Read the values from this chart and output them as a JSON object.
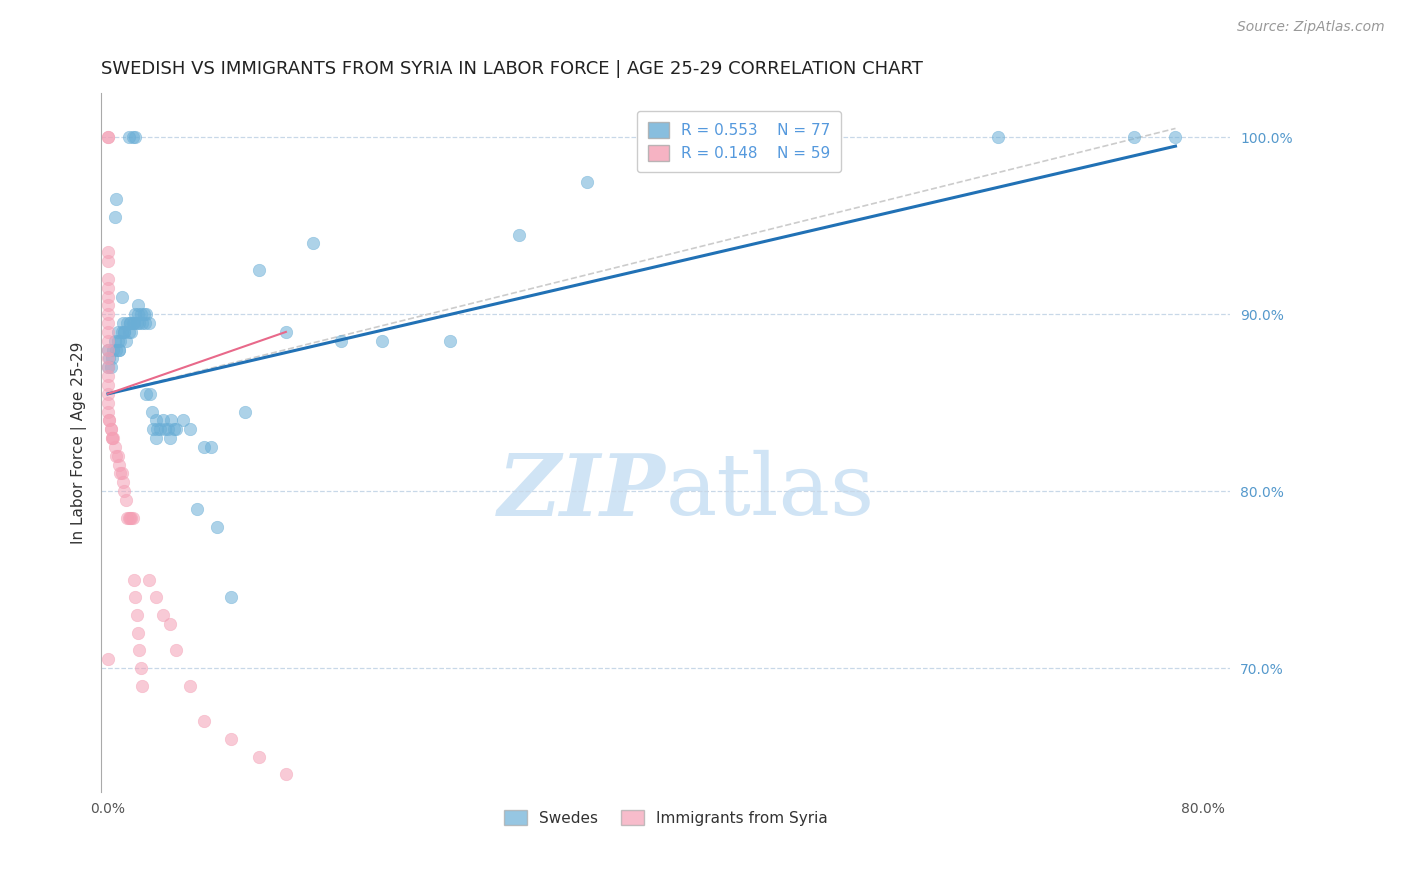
{
  "title": "SWEDISH VS IMMIGRANTS FROM SYRIA IN LABOR FORCE | AGE 25-29 CORRELATION CHART",
  "source_text": "Source: ZipAtlas.com",
  "ylabel": "In Labor Force | Age 25-29",
  "ytick_labels": [
    "100.0%",
    "90.0%",
    "80.0%",
    "70.0%"
  ],
  "ytick_values": [
    1.0,
    0.9,
    0.8,
    0.7
  ],
  "xlim": [
    -0.005,
    0.82
  ],
  "ylim": [
    0.63,
    1.025
  ],
  "blue_color": "#6aaed6",
  "pink_color": "#f4a0b5",
  "blue_line_color": "#2171b5",
  "pink_line_color": "#e8698a",
  "diagonal_line_color": "#cccccc",
  "grid_color": "#c8d8e8",
  "background_color": "#ffffff",
  "watermark_color": "#d0e4f5",
  "legend_r_blue": "R = 0.553",
  "legend_n_blue": "N = 77",
  "legend_r_pink": "R = 0.148",
  "legend_n_pink": "N = 59",
  "swedes_label": "Swedes",
  "syria_label": "Immigrants from Syria",
  "blue_scatter_x": [
    0.0,
    0.0,
    0.001,
    0.002,
    0.003,
    0.004,
    0.005,
    0.006,
    0.007,
    0.008,
    0.009,
    0.01,
    0.011,
    0.012,
    0.013,
    0.014,
    0.015,
    0.016,
    0.017,
    0.018,
    0.019,
    0.02,
    0.021,
    0.022,
    0.023,
    0.024,
    0.025,
    0.026,
    0.027,
    0.028,
    0.03,
    0.031,
    0.032,
    0.033,
    0.035,
    0.036,
    0.038,
    0.04,
    0.042,
    0.044,
    0.046,
    0.048,
    0.05,
    0.055,
    0.06,
    0.065,
    0.07,
    0.075,
    0.08,
    0.09,
    0.1,
    0.11,
    0.13,
    0.15,
    0.17,
    0.2,
    0.25,
    0.3,
    0.35,
    0.5,
    0.65,
    0.75,
    0.78,
    0.005,
    0.006,
    0.015,
    0.018,
    0.02,
    0.007,
    0.008,
    0.01,
    0.012,
    0.016,
    0.022,
    0.028,
    0.035,
    0.045
  ],
  "blue_scatter_y": [
    0.87,
    0.88,
    0.875,
    0.87,
    0.875,
    0.88,
    0.885,
    0.88,
    0.885,
    0.88,
    0.885,
    0.89,
    0.895,
    0.89,
    0.885,
    0.895,
    0.89,
    0.895,
    0.89,
    0.895,
    0.895,
    0.9,
    0.895,
    0.9,
    0.895,
    0.9,
    0.895,
    0.9,
    0.895,
    0.9,
    0.895,
    0.855,
    0.845,
    0.835,
    0.84,
    0.835,
    0.835,
    0.84,
    0.835,
    0.835,
    0.84,
    0.835,
    0.835,
    0.84,
    0.835,
    0.79,
    0.825,
    0.825,
    0.78,
    0.74,
    0.845,
    0.925,
    0.89,
    0.94,
    0.885,
    0.885,
    0.885,
    0.945,
    0.975,
    1.0,
    1.0,
    1.0,
    1.0,
    0.955,
    0.965,
    1.0,
    1.0,
    1.0,
    0.89,
    0.88,
    0.91,
    0.89,
    0.895,
    0.905,
    0.855,
    0.83,
    0.83
  ],
  "pink_scatter_x": [
    0.0,
    0.0,
    0.0,
    0.0,
    0.0,
    0.0,
    0.0,
    0.0,
    0.0,
    0.0,
    0.0,
    0.0,
    0.0,
    0.0,
    0.0,
    0.0,
    0.0,
    0.0,
    0.0,
    0.0,
    0.001,
    0.001,
    0.002,
    0.002,
    0.003,
    0.003,
    0.004,
    0.005,
    0.006,
    0.007,
    0.008,
    0.009,
    0.01,
    0.011,
    0.012,
    0.013,
    0.014,
    0.015,
    0.016,
    0.017,
    0.018,
    0.019,
    0.02,
    0.021,
    0.022,
    0.023,
    0.024,
    0.025,
    0.03,
    0.035,
    0.04,
    0.045,
    0.05,
    0.06,
    0.07,
    0.09,
    0.11,
    0.13,
    0.0
  ],
  "pink_scatter_y": [
    1.0,
    1.0,
    0.93,
    0.935,
    0.92,
    0.915,
    0.91,
    0.905,
    0.9,
    0.895,
    0.89,
    0.885,
    0.88,
    0.875,
    0.87,
    0.865,
    0.86,
    0.855,
    0.85,
    0.845,
    0.84,
    0.84,
    0.835,
    0.835,
    0.83,
    0.83,
    0.83,
    0.825,
    0.82,
    0.82,
    0.815,
    0.81,
    0.81,
    0.805,
    0.8,
    0.795,
    0.785,
    0.785,
    0.785,
    0.785,
    0.785,
    0.75,
    0.74,
    0.73,
    0.72,
    0.71,
    0.7,
    0.69,
    0.75,
    0.74,
    0.73,
    0.725,
    0.71,
    0.69,
    0.67,
    0.66,
    0.65,
    0.64,
    0.705
  ],
  "blue_line_x": [
    0.0,
    0.78
  ],
  "blue_line_y": [
    0.855,
    0.995
  ],
  "pink_line_x": [
    0.0,
    0.13
  ],
  "pink_line_y": [
    0.855,
    0.89
  ],
  "diag_line_x": [
    0.0,
    0.78
  ],
  "diag_line_y": [
    0.855,
    1.005
  ],
  "marker_size": 80,
  "marker_alpha": 0.55,
  "title_fontsize": 13,
  "axis_label_fontsize": 11,
  "tick_fontsize": 10,
  "legend_fontsize": 11,
  "source_fontsize": 10
}
